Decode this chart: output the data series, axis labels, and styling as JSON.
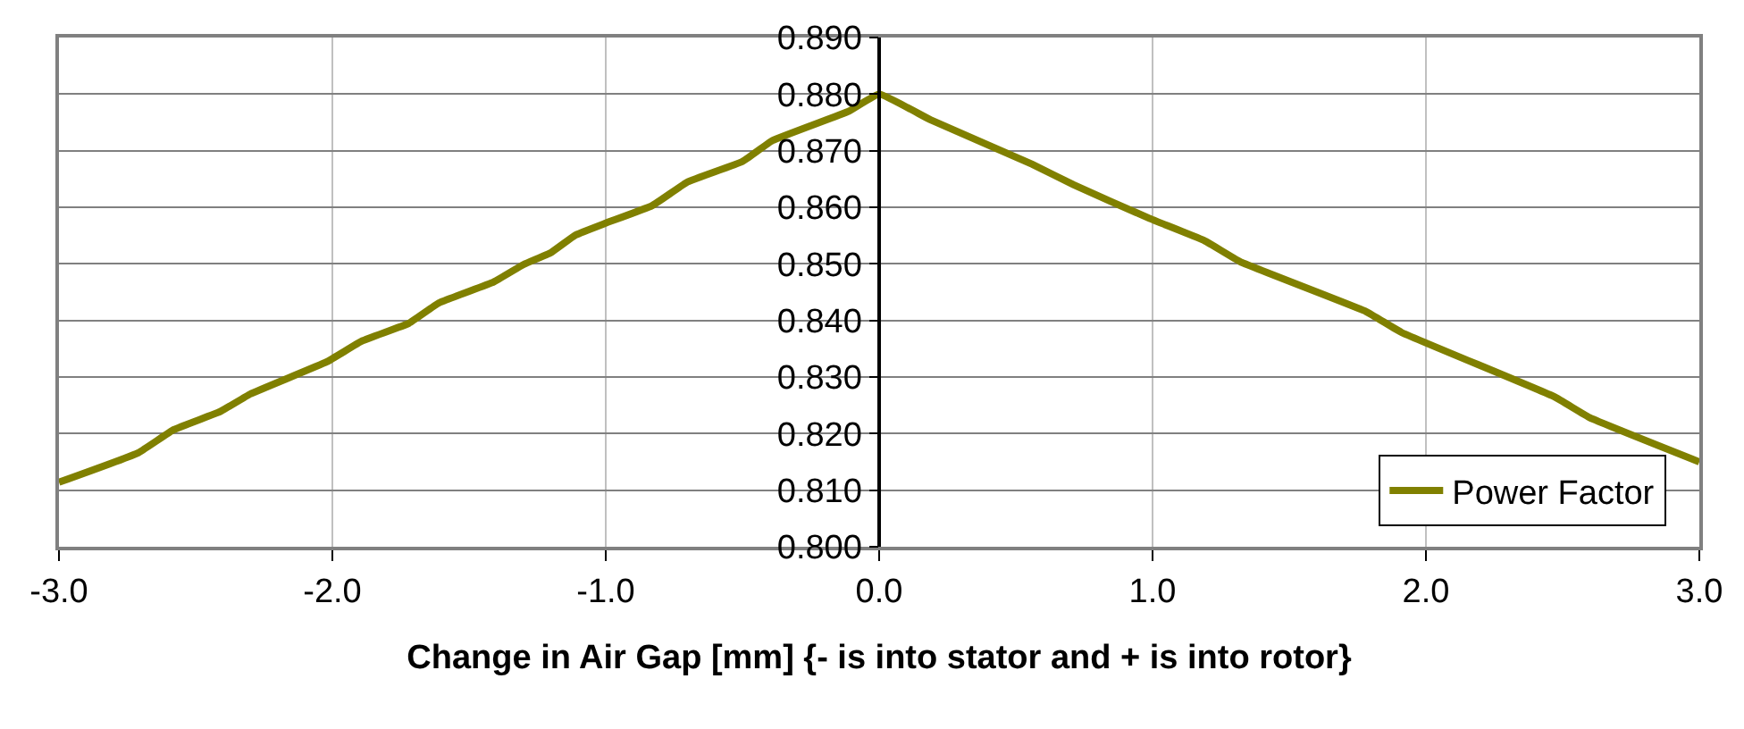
{
  "chart_data": {
    "type": "line",
    "xlabel": "Change in Air Gap [mm] {- is into stator and + is into rotor}",
    "xlim": [
      -3,
      3
    ],
    "xticks": [
      {
        "value": -3,
        "label": "-3.0"
      },
      {
        "value": -2,
        "label": "-2.0"
      },
      {
        "value": -1,
        "label": "-1.0"
      },
      {
        "value": 0,
        "label": "0.0"
      },
      {
        "value": 1,
        "label": "1.0"
      },
      {
        "value": 2,
        "label": "2.0"
      },
      {
        "value": 3,
        "label": "3.0"
      }
    ],
    "ylim": [
      0.8,
      0.89
    ],
    "yticks": [
      {
        "value": 0.8,
        "label": "0.800"
      },
      {
        "value": 0.81,
        "label": "0.810"
      },
      {
        "value": 0.82,
        "label": "0.820"
      },
      {
        "value": 0.83,
        "label": "0.830"
      },
      {
        "value": 0.84,
        "label": "0.840"
      },
      {
        "value": 0.85,
        "label": "0.850"
      },
      {
        "value": 0.86,
        "label": "0.860"
      },
      {
        "value": 0.87,
        "label": "0.870"
      },
      {
        "value": 0.88,
        "label": "0.880"
      },
      {
        "value": 0.89,
        "label": "0.890"
      }
    ],
    "grid": true,
    "legend": "bottom right",
    "marker": "none",
    "line_style": "solid",
    "series": [
      {
        "name": "Power Factor",
        "color": "#808000",
        "x": [
          -3,
          -2.71,
          -2.58,
          -2.41,
          -2.3,
          -2.02,
          -1.89,
          -1.72,
          -1.61,
          -1.41,
          -1.3,
          -1.2,
          -1.11,
          -1,
          -0.83,
          -0.7,
          -0.5,
          -0.39,
          -0.11,
          0,
          0.19,
          0.56,
          0.71,
          0.99,
          1.19,
          1.32,
          1.78,
          1.91,
          2.47,
          2.6,
          3
        ],
        "values": [
          0.8114,
          0.8166,
          0.8207,
          0.8239,
          0.827,
          0.8327,
          0.8364,
          0.8395,
          0.8431,
          0.8468,
          0.8499,
          0.852,
          0.8551,
          0.8572,
          0.8603,
          0.8645,
          0.8681,
          0.8718,
          0.877,
          0.88,
          0.8754,
          0.8676,
          0.864,
          0.858,
          0.8541,
          0.8504,
          0.8416,
          0.8379,
          0.8265,
          0.8228,
          0.815
        ]
      }
    ]
  }
}
